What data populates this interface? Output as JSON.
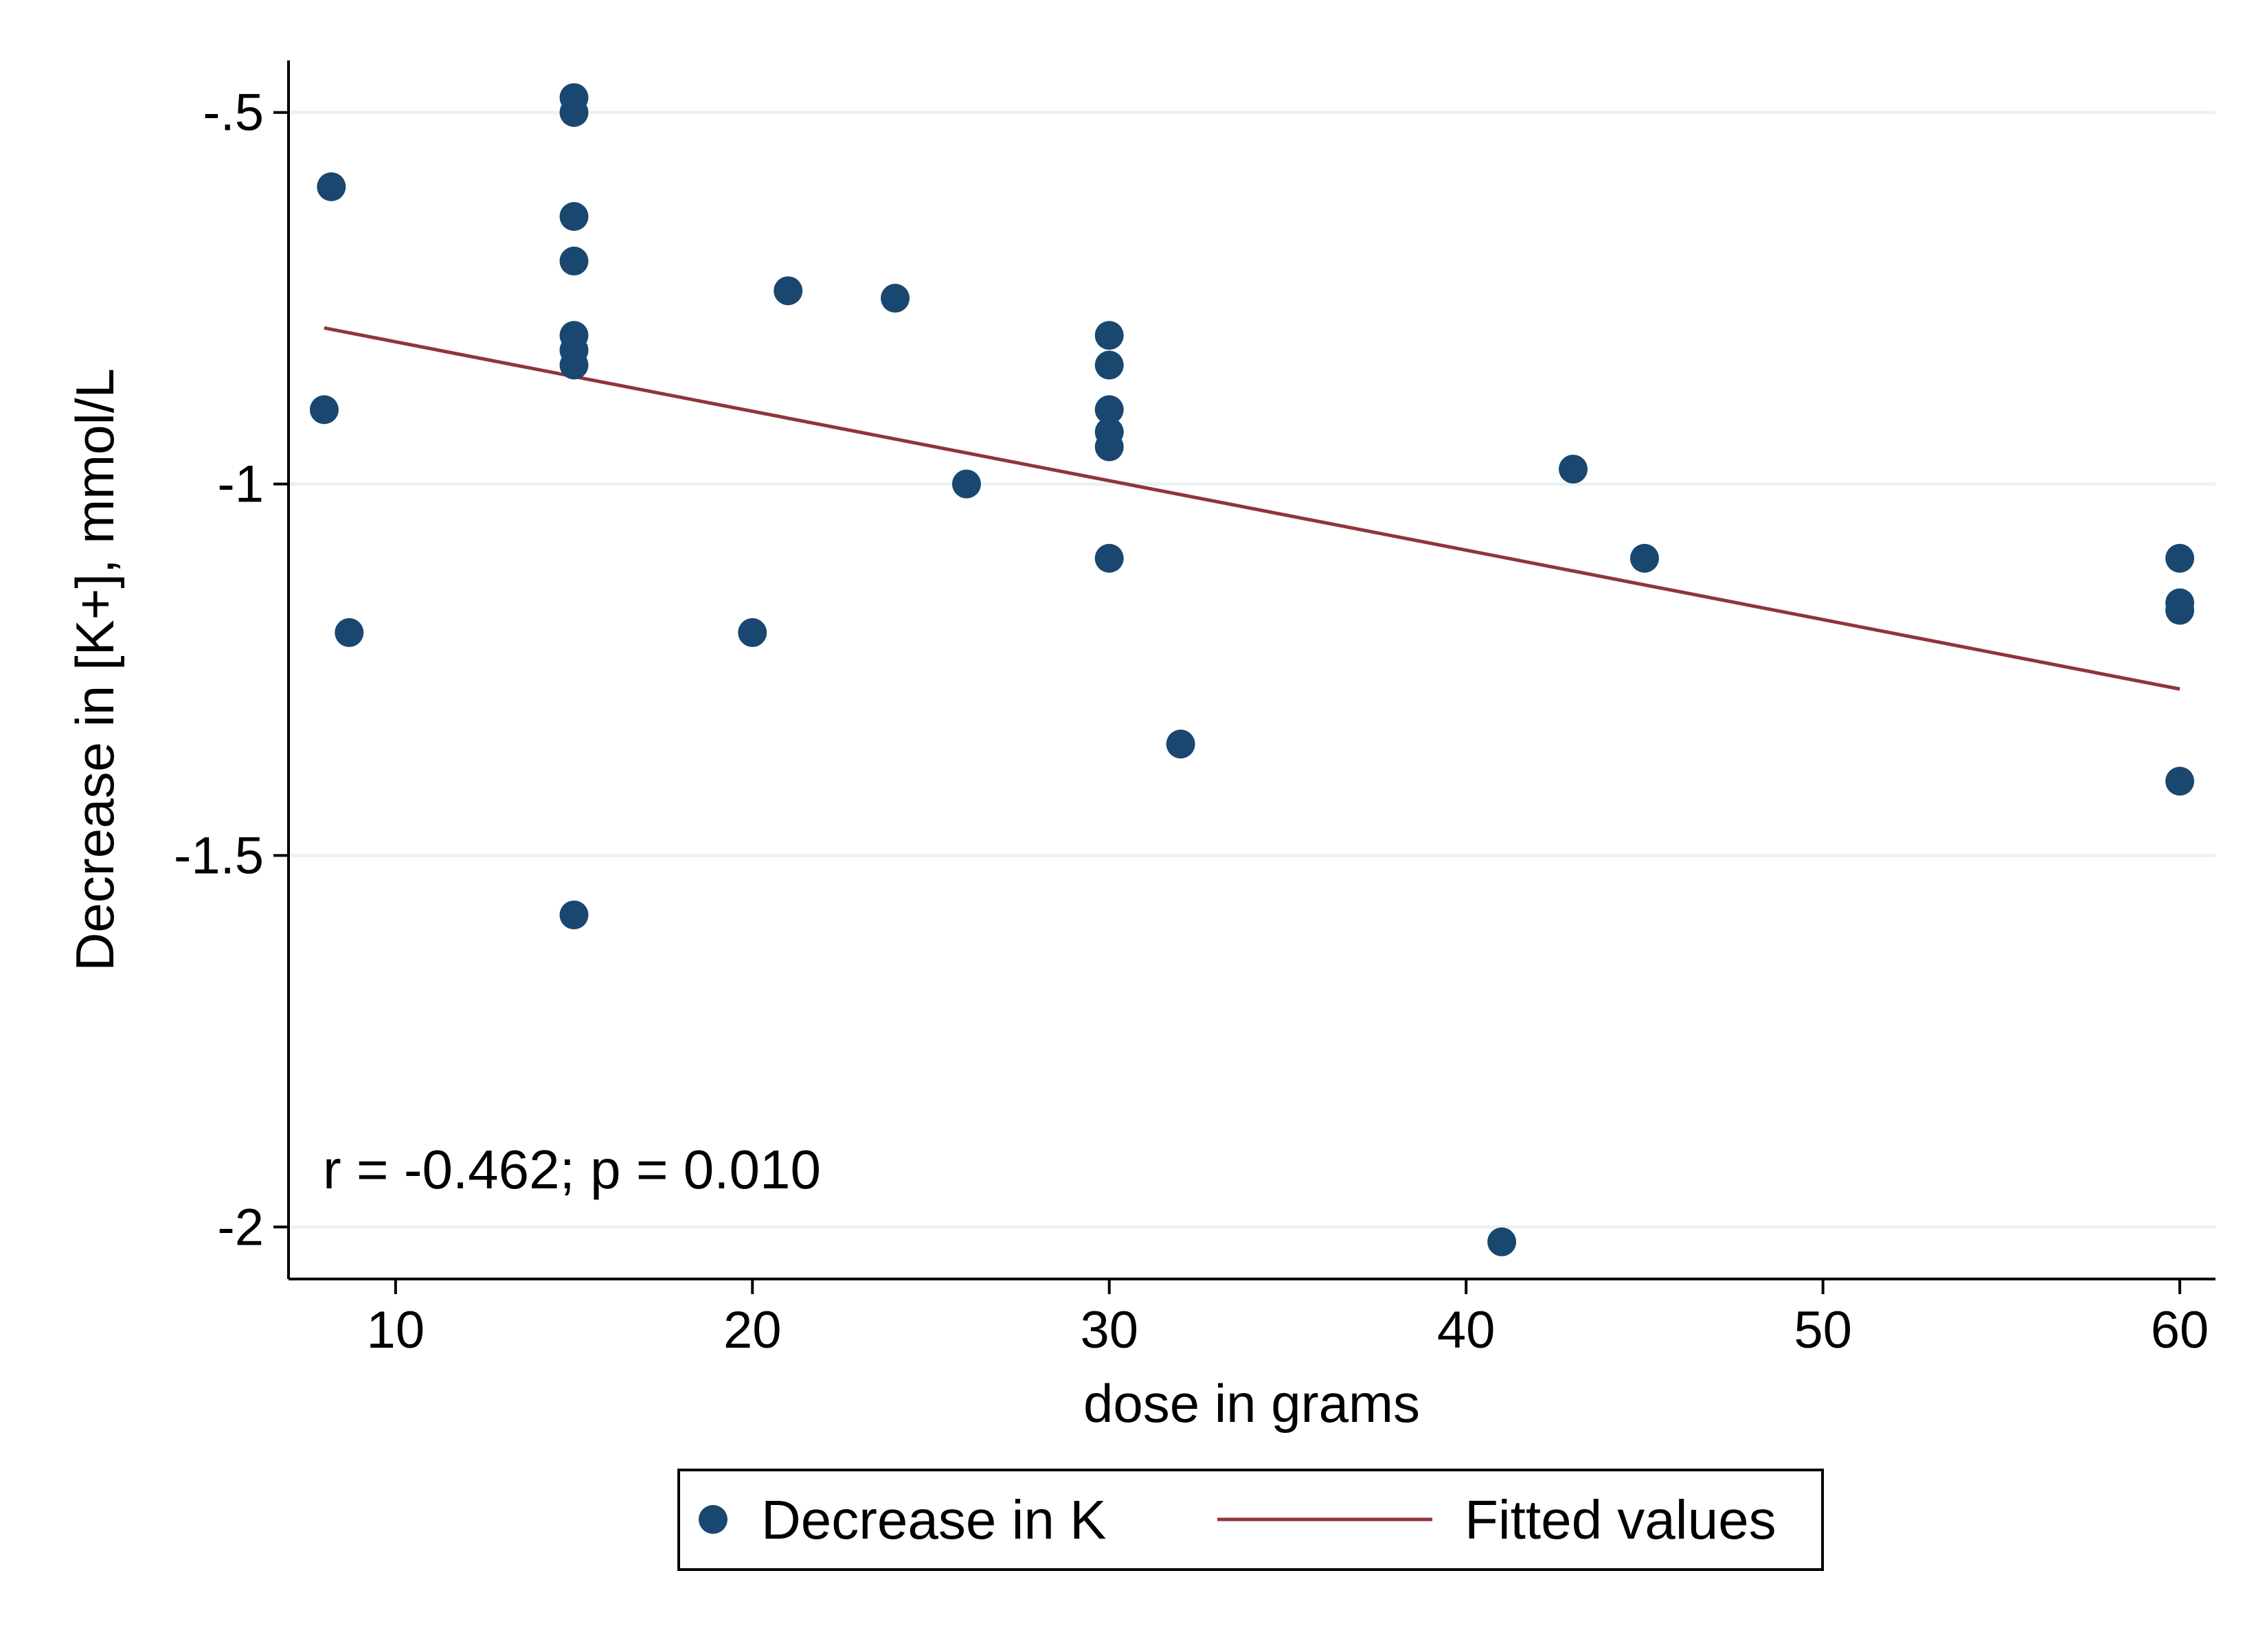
{
  "chart_data": {
    "type": "scatter",
    "title": "",
    "xlabel": "dose in grams",
    "ylabel": "Decrease in [K+], mmol/L",
    "xlim": [
      7,
      61
    ],
    "ylim": [
      -2.07,
      -0.43
    ],
    "xticks": [
      10,
      20,
      30,
      40,
      50,
      60
    ],
    "xtick_labels": [
      "10",
      "20",
      "30",
      "40",
      "50",
      "60"
    ],
    "yticks": [
      -0.5,
      -1,
      -1.5,
      -2
    ],
    "ytick_labels": [
      "-.5",
      "-1",
      "-1.5",
      "-2"
    ],
    "grid": "horizontal",
    "annotation": "r = -0.462; p = 0.010",
    "legend_position": "bottom",
    "series": [
      {
        "name": "Decrease in K",
        "kind": "scatter",
        "color": "#1a476f",
        "points": [
          {
            "x": 8,
            "y": -0.9
          },
          {
            "x": 8.2,
            "y": -0.6
          },
          {
            "x": 8.7,
            "y": -1.2
          },
          {
            "x": 15,
            "y": -0.48
          },
          {
            "x": 15,
            "y": -0.5
          },
          {
            "x": 15,
            "y": -0.64
          },
          {
            "x": 15,
            "y": -0.7
          },
          {
            "x": 15,
            "y": -0.8
          },
          {
            "x": 15,
            "y": -0.82
          },
          {
            "x": 15,
            "y": -0.84
          },
          {
            "x": 15,
            "y": -1.58
          },
          {
            "x": 20,
            "y": -1.2
          },
          {
            "x": 21,
            "y": -0.74
          },
          {
            "x": 24,
            "y": -0.75
          },
          {
            "x": 26,
            "y": -1.0
          },
          {
            "x": 30,
            "y": -0.8
          },
          {
            "x": 30,
            "y": -0.84
          },
          {
            "x": 30,
            "y": -0.9
          },
          {
            "x": 30,
            "y": -0.93
          },
          {
            "x": 30,
            "y": -0.95
          },
          {
            "x": 30,
            "y": -1.1
          },
          {
            "x": 32,
            "y": -1.35
          },
          {
            "x": 41,
            "y": -2.02
          },
          {
            "x": 43,
            "y": -0.98
          },
          {
            "x": 45,
            "y": -1.1
          },
          {
            "x": 60,
            "y": -1.1
          },
          {
            "x": 60,
            "y": -1.16
          },
          {
            "x": 60,
            "y": -1.17
          },
          {
            "x": 60,
            "y": -1.4
          }
        ]
      },
      {
        "name": "Fitted values",
        "kind": "line",
        "color": "#90353b",
        "points": [
          {
            "x": 8,
            "y": -0.79
          },
          {
            "x": 60,
            "y": -1.276
          }
        ]
      }
    ]
  }
}
